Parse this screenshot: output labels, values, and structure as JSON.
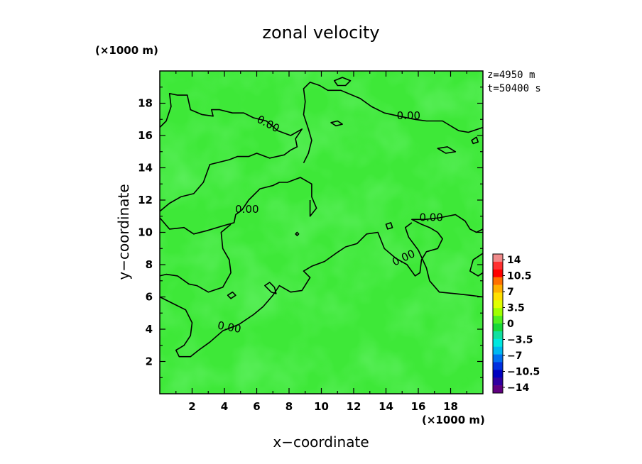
{
  "chart_data": {
    "type": "heatmap",
    "title": "zonal velocity",
    "xlabel": "x−coordinate",
    "ylabel": "y−coordinate",
    "x_unit_label": "(×1000 m)",
    "y_unit_label": "(×1000 m)",
    "xlim": [
      0,
      20
    ],
    "ylim": [
      0,
      20
    ],
    "x_ticks": [
      "2",
      "4",
      "6",
      "8",
      "10",
      "12",
      "14",
      "16",
      "18"
    ],
    "y_ticks": [
      "2",
      "4",
      "6",
      "8",
      "10",
      "12",
      "14",
      "16",
      "18"
    ],
    "info": [
      "z=4950  m",
      "t=50400  s"
    ],
    "colorbar": {
      "labels": [
        "14",
        "10.5",
        "7",
        "3.5",
        "0",
        "−3.5",
        "−7",
        "−10.5",
        "−14"
      ],
      "colors": [
        "#f08a8a",
        "#ff3030",
        "#ff0000",
        "#ff7000",
        "#ffb000",
        "#ffe000",
        "#e0ff00",
        "#a0ff00",
        "#50f020",
        "#18d838",
        "#10e0a0",
        "#00e8e0",
        "#00b8f0",
        "#0070f0",
        "#0030e0",
        "#0000c0",
        "#3000a0",
        "#600080"
      ]
    },
    "contour_level": "0.00",
    "contour_labels": [
      {
        "text": "0.00",
        "x": 6.7,
        "y": 16.7,
        "rot": 28
      },
      {
        "text": "0.00",
        "x": 15.4,
        "y": 17.2,
        "rot": 0
      },
      {
        "text": "0.00",
        "x": 5.4,
        "y": 11.4,
        "rot": 0
      },
      {
        "text": "0.00",
        "x": 16.8,
        "y": 10.9,
        "rot": 0
      },
      {
        "text": "0.00",
        "x": 15.1,
        "y": 8.4,
        "rot": -25
      },
      {
        "text": "0.00",
        "x": 4.3,
        "y": 4.1,
        "rot": 10
      }
    ],
    "contours": [
      [
        [
          0,
          16.5
        ],
        [
          0.4,
          16.9
        ],
        [
          0.7,
          17.8
        ],
        [
          0.6,
          18.6
        ],
        [
          1.1,
          18.5
        ],
        [
          1.7,
          18.5
        ],
        [
          1.9,
          17.6
        ],
        [
          2.6,
          17.3
        ],
        [
          3.3,
          17.2
        ],
        [
          3.2,
          17.6
        ],
        [
          3.7,
          17.6
        ],
        [
          4.5,
          17.4
        ],
        [
          5.2,
          17.4
        ],
        [
          5.8,
          17.1
        ],
        [
          6.6,
          16.9
        ],
        [
          7.3,
          16.3
        ],
        [
          8.1,
          16.0
        ],
        [
          8.8,
          16.4
        ],
        [
          8.4,
          15.8
        ],
        [
          8.5,
          15.3
        ],
        [
          8.1,
          15.1
        ],
        [
          7.7,
          14.8
        ],
        [
          6.8,
          14.6
        ],
        [
          6.0,
          14.9
        ],
        [
          5.5,
          14.7
        ],
        [
          4.8,
          14.7
        ],
        [
          4.3,
          14.5
        ],
        [
          3.1,
          14.2
        ],
        [
          2.7,
          13.1
        ],
        [
          2.1,
          12.4
        ],
        [
          1.3,
          12.2
        ],
        [
          0.6,
          11.8
        ],
        [
          0,
          11.3
        ]
      ],
      [
        [
          0,
          10.9
        ],
        [
          0.6,
          10.2
        ],
        [
          1.5,
          10.3
        ],
        [
          2.1,
          9.9
        ],
        [
          2.9,
          10.1
        ],
        [
          3.9,
          10.4
        ],
        [
          4.6,
          10.6
        ],
        [
          4.7,
          11.1
        ],
        [
          5.1,
          11.4
        ],
        [
          5.5,
          12.0
        ],
        [
          6.2,
          12.7
        ],
        [
          7.0,
          12.9
        ],
        [
          7.4,
          13.1
        ],
        [
          7.9,
          13.1
        ],
        [
          8.7,
          13.4
        ],
        [
          9.4,
          13.0
        ],
        [
          9.4,
          12.2
        ],
        [
          9.7,
          11.5
        ],
        [
          9.3,
          11.0
        ],
        [
          9.3,
          12.0
        ]
      ],
      [
        [
          8.9,
          14.3
        ],
        [
          9.2,
          14.9
        ],
        [
          9.4,
          15.7
        ],
        [
          9.2,
          16.4
        ],
        [
          8.9,
          17.3
        ],
        [
          9.0,
          18.1
        ],
        [
          8.9,
          18.9
        ],
        [
          9.3,
          19.3
        ],
        [
          9.9,
          19.1
        ],
        [
          10.4,
          18.8
        ],
        [
          11.2,
          18.8
        ],
        [
          12.4,
          18.3
        ],
        [
          13.1,
          17.8
        ],
        [
          13.9,
          17.4
        ],
        [
          14.8,
          17.2
        ],
        [
          15.8,
          17.0
        ],
        [
          16.5,
          16.9
        ],
        [
          17.5,
          16.9
        ],
        [
          18.5,
          16.3
        ],
        [
          19.1,
          16.2
        ],
        [
          20,
          16.5
        ]
      ],
      [
        [
          0,
          7.3
        ],
        [
          0.4,
          7.4
        ],
        [
          1.1,
          7.3
        ],
        [
          1.8,
          6.8
        ],
        [
          2.3,
          6.7
        ],
        [
          3.0,
          6.3
        ],
        [
          3.9,
          6.6
        ],
        [
          4.4,
          7.5
        ],
        [
          4.3,
          8.3
        ],
        [
          3.9,
          9.0
        ],
        [
          3.8,
          10.0
        ],
        [
          4.4,
          10.5
        ]
      ],
      [
        [
          0,
          6.0
        ],
        [
          0.8,
          5.6
        ],
        [
          1.6,
          5.2
        ],
        [
          2.0,
          4.4
        ],
        [
          1.9,
          3.6
        ],
        [
          1.5,
          3.0
        ],
        [
          1.0,
          2.7
        ],
        [
          1.2,
          2.3
        ],
        [
          1.9,
          2.3
        ],
        [
          2.4,
          2.7
        ],
        [
          3.1,
          3.2
        ],
        [
          3.9,
          3.9
        ],
        [
          4.9,
          4.3
        ],
        [
          5.8,
          4.9
        ],
        [
          6.4,
          5.4
        ],
        [
          7.0,
          6.1
        ],
        [
          7.4,
          6.7
        ],
        [
          8.1,
          6.3
        ],
        [
          8.8,
          6.4
        ],
        [
          9.3,
          7.2
        ],
        [
          8.9,
          7.6
        ],
        [
          9.4,
          7.9
        ],
        [
          10.2,
          8.2
        ],
        [
          10.9,
          8.7
        ],
        [
          11.5,
          9.1
        ],
        [
          12.2,
          9.3
        ],
        [
          12.8,
          9.9
        ],
        [
          13.5,
          10.0
        ],
        [
          13.9,
          9.0
        ],
        [
          14.6,
          8.4
        ],
        [
          15.3,
          8.0
        ],
        [
          15.8,
          7.3
        ],
        [
          16.1,
          7.5
        ],
        [
          16.2,
          8.3
        ],
        [
          16.5,
          8.8
        ],
        [
          17.2,
          9.0
        ],
        [
          17.5,
          9.6
        ],
        [
          17.2,
          10.0
        ],
        [
          16.7,
          10.3
        ],
        [
          16.2,
          10.5
        ],
        [
          15.6,
          10.8
        ],
        [
          16.4,
          10.8
        ],
        [
          17.3,
          10.9
        ],
        [
          18.3,
          11.1
        ],
        [
          18.9,
          10.7
        ],
        [
          19.2,
          10.2
        ],
        [
          19.6,
          10.0
        ],
        [
          20,
          10.2
        ]
      ],
      [
        [
          20,
          8.7
        ],
        [
          19.4,
          8.3
        ],
        [
          19.2,
          7.6
        ],
        [
          19.7,
          7.3
        ],
        [
          20,
          7.5
        ]
      ],
      [
        [
          20,
          6.0
        ],
        [
          19.2,
          6.1
        ],
        [
          18.3,
          6.2
        ],
        [
          17.3,
          6.3
        ],
        [
          16.7,
          7.0
        ],
        [
          16.5,
          7.8
        ],
        [
          16.0,
          8.9
        ],
        [
          15.4,
          9.7
        ],
        [
          15.2,
          10.3
        ],
        [
          15.6,
          10.6
        ]
      ]
    ],
    "closed_contours": [
      [
        [
          10.8,
          19.4
        ],
        [
          11.3,
          19.6
        ],
        [
          11.8,
          19.4
        ],
        [
          11.5,
          19.1
        ],
        [
          11.0,
          19.1
        ]
      ],
      [
        [
          10.6,
          16.8
        ],
        [
          11.0,
          16.9
        ],
        [
          11.3,
          16.7
        ],
        [
          10.9,
          16.6
        ]
      ],
      [
        [
          17.2,
          15.2
        ],
        [
          17.8,
          15.3
        ],
        [
          18.3,
          15.0
        ],
        [
          17.7,
          14.9
        ]
      ],
      [
        [
          19.3,
          15.7
        ],
        [
          19.6,
          15.9
        ],
        [
          19.7,
          15.6
        ],
        [
          19.4,
          15.5
        ]
      ],
      [
        [
          14.0,
          10.5
        ],
        [
          14.3,
          10.6
        ],
        [
          14.4,
          10.3
        ],
        [
          14.1,
          10.2
        ]
      ],
      [
        [
          6.5,
          6.7
        ],
        [
          6.8,
          6.9
        ],
        [
          7.1,
          6.6
        ],
        [
          7.2,
          6.2
        ],
        [
          6.9,
          6.3
        ]
      ],
      [
        [
          4.2,
          6.1
        ],
        [
          4.5,
          6.3
        ],
        [
          4.7,
          6.1
        ],
        [
          4.4,
          5.9
        ]
      ],
      [
        [
          8.4,
          9.9
        ],
        [
          8.5,
          10.0
        ],
        [
          8.6,
          9.9
        ],
        [
          8.5,
          9.8
        ]
      ]
    ]
  }
}
